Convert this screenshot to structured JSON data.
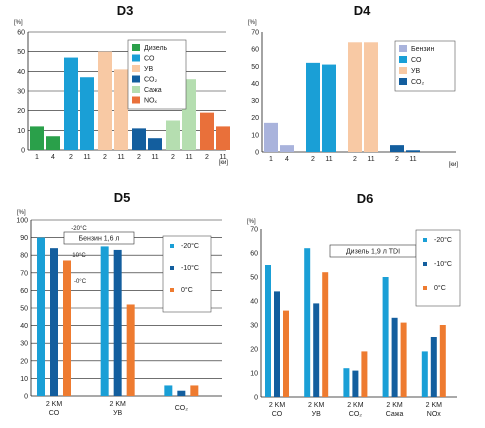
{
  "chart_data": [
    {
      "id": "d3",
      "type": "bar",
      "title": "D3",
      "ylabel": "[%]",
      "ylim": [
        0,
        60
      ],
      "yticks": [
        0,
        10,
        20,
        30,
        40,
        50,
        60
      ],
      "grid": true,
      "legend_position": "top-right",
      "xunit": "[ки]",
      "groups": [
        {
          "series": "Дизель",
          "ticks": [
            "1",
            "4"
          ],
          "values": [
            12,
            7
          ]
        },
        {
          "series": "CO",
          "ticks": [
            "2",
            "11"
          ],
          "values": [
            47,
            37
          ]
        },
        {
          "series": "УВ",
          "ticks": [
            "2",
            "11"
          ],
          "values": [
            50,
            41
          ]
        },
        {
          "series": "CO₂",
          "ticks": [
            "2",
            "11"
          ],
          "values": [
            11,
            6
          ]
        },
        {
          "series": "Сажа",
          "ticks": [
            "2",
            "11"
          ],
          "values": [
            15,
            36
          ]
        },
        {
          "series": "NOₓ",
          "ticks": [
            "2",
            "11"
          ],
          "values": [
            19,
            12
          ]
        }
      ],
      "legend": [
        {
          "name": "Дизель",
          "color": "#2aa04a"
        },
        {
          "name": "CO",
          "color": "#1a9fd6"
        },
        {
          "name": "УВ",
          "color": "#f8c9a4"
        },
        {
          "name": "CO₂",
          "color": "#135e9e"
        },
        {
          "name": "Сажа",
          "color": "#b5deb0"
        },
        {
          "name": "NOₓ",
          "color": "#e9703a"
        }
      ]
    },
    {
      "id": "d4",
      "type": "bar",
      "title": "D4",
      "ylabel": "[%]",
      "ylim": [
        0,
        70
      ],
      "yticks": [
        0,
        10,
        20,
        30,
        40,
        50,
        60,
        70
      ],
      "grid": false,
      "legend_position": "top-right",
      "xunit": "[ки]",
      "groups": [
        {
          "series": "Бензин",
          "ticks": [
            "1",
            "4"
          ],
          "values": [
            17,
            4
          ]
        },
        {
          "series": "CO",
          "ticks": [
            "2",
            "11"
          ],
          "values": [
            52,
            51
          ]
        },
        {
          "series": "УВ",
          "ticks": [
            "2",
            "11"
          ],
          "values": [
            64,
            64
          ]
        },
        {
          "series": "CO₂",
          "ticks": [
            "2",
            "11"
          ],
          "values": [
            4,
            1
          ]
        }
      ],
      "legend": [
        {
          "name": "Бензин",
          "color": "#a9b3dc"
        },
        {
          "name": "CO",
          "color": "#1a9fd6"
        },
        {
          "name": "УВ",
          "color": "#f8c9a4"
        },
        {
          "name": "CO₂",
          "color": "#135e9e"
        }
      ]
    },
    {
      "id": "d5",
      "type": "bar",
      "title": "D5",
      "ylabel": "[%]",
      "ylim": [
        0,
        100
      ],
      "yticks": [
        0,
        10,
        20,
        30,
        40,
        50,
        60,
        70,
        80,
        90,
        100
      ],
      "grid": true,
      "legend_position": "right",
      "box_label": "Бензин 1,6 л",
      "categories": [
        "2 KM\nCO",
        "2 KM\nУВ",
        "CO₂"
      ],
      "series": [
        {
          "name": "-20°C",
          "color": "#1a9fd6",
          "values": [
            90,
            85,
            6
          ]
        },
        {
          "name": "-10°C",
          "color": "#135e9e",
          "values": [
            84,
            83,
            3
          ]
        },
        {
          "name": "0°C",
          "color": "#ee7b30",
          "values": [
            77,
            52,
            6
          ]
        }
      ],
      "inline_labels": [
        "-20°C",
        "-10°C",
        "-0°C"
      ]
    },
    {
      "id": "d6",
      "type": "bar",
      "title": "D6",
      "ylabel": "[%]",
      "ylim": [
        0,
        70
      ],
      "yticks": [
        0,
        10,
        20,
        30,
        40,
        50,
        60,
        70
      ],
      "grid": false,
      "legend_position": "right",
      "box_label": "Дизель 1,9 л TDI",
      "categories": [
        "2 KM\nCO",
        "2 KM\nУВ",
        "2 KM\nCO₂",
        "2 KM\nСажа",
        "2 KM\nNOx"
      ],
      "series": [
        {
          "name": "-20°C",
          "color": "#1a9fd6",
          "values": [
            55,
            62,
            12,
            50,
            19
          ]
        },
        {
          "name": "-10°C",
          "color": "#135e9e",
          "values": [
            44,
            39,
            11,
            33,
            25
          ]
        },
        {
          "name": "0°C",
          "color": "#ee7b30",
          "values": [
            36,
            52,
            19,
            31,
            30
          ]
        }
      ]
    }
  ]
}
